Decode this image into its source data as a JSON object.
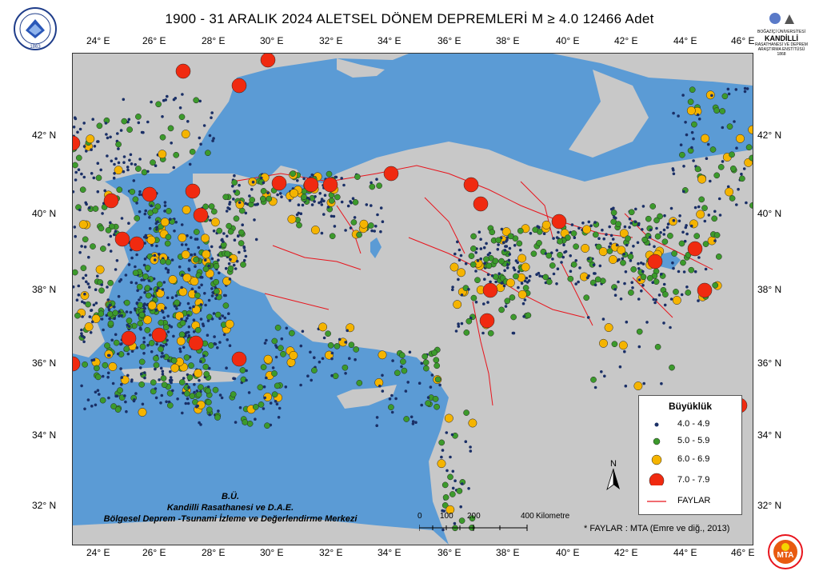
{
  "title": "1900 - 31 ARALIK  2024  ALETSEL DÖNEM DEPREMLERİ M ≥ 4.0     12466 Adet",
  "logo_left_text": "BOĞAZİÇİ ÜNİVERSİTESİ 1863",
  "logo_right": {
    "top": "BOĞAZİÇİ ÜNİVERSİTESİ",
    "main": "KANDİLLİ",
    "sub": "RASATHANESİ VE DEPREM ARAŞTIRMA ENSTİTÜSÜ",
    "year": "1868"
  },
  "longitude_labels": [
    "24° E",
    "26° E",
    "28° E",
    "30° E",
    "32° E",
    "34° E",
    "36° E",
    "38° E",
    "40° E",
    "42° E",
    "44° E",
    "46° E"
  ],
  "latitude_labels": [
    "42° N",
    "40° N",
    "38° N",
    "36° N",
    "34° N",
    "32° N"
  ],
  "legend": {
    "title": "Büyüklük",
    "items": [
      {
        "label": "4.0 - 4.9",
        "color": "#1a2f66"
      },
      {
        "label": "5.0 - 5.9",
        "color": "#3c9a2c"
      },
      {
        "label": "6.0 - 6.9",
        "color": "#f5b400"
      },
      {
        "label": "7.0 - 7.9",
        "color": "#f02a10"
      },
      {
        "label": "FAYLAR",
        "color": "#e8141c"
      }
    ]
  },
  "credit": {
    "line1": "B.Ü.",
    "line2": "Kandilli Rasathanesi ve D.A.E.",
    "line3": "Bölgesel Deprem -Tsunami İzleme ve Değerlendirme Merkezi"
  },
  "scale_bar": {
    "ticks": [
      "0",
      "100",
      "200",
      "400"
    ],
    "unit": "Kilometre"
  },
  "north_label": "N",
  "fault_source": "* FAYLAR : MTA (Emre ve diğ., 2013)",
  "mta_logo_text": "MTA",
  "colors": {
    "sea": "#5b9bd5",
    "land": "#c8c8c8",
    "fault": "#e8141c"
  }
}
